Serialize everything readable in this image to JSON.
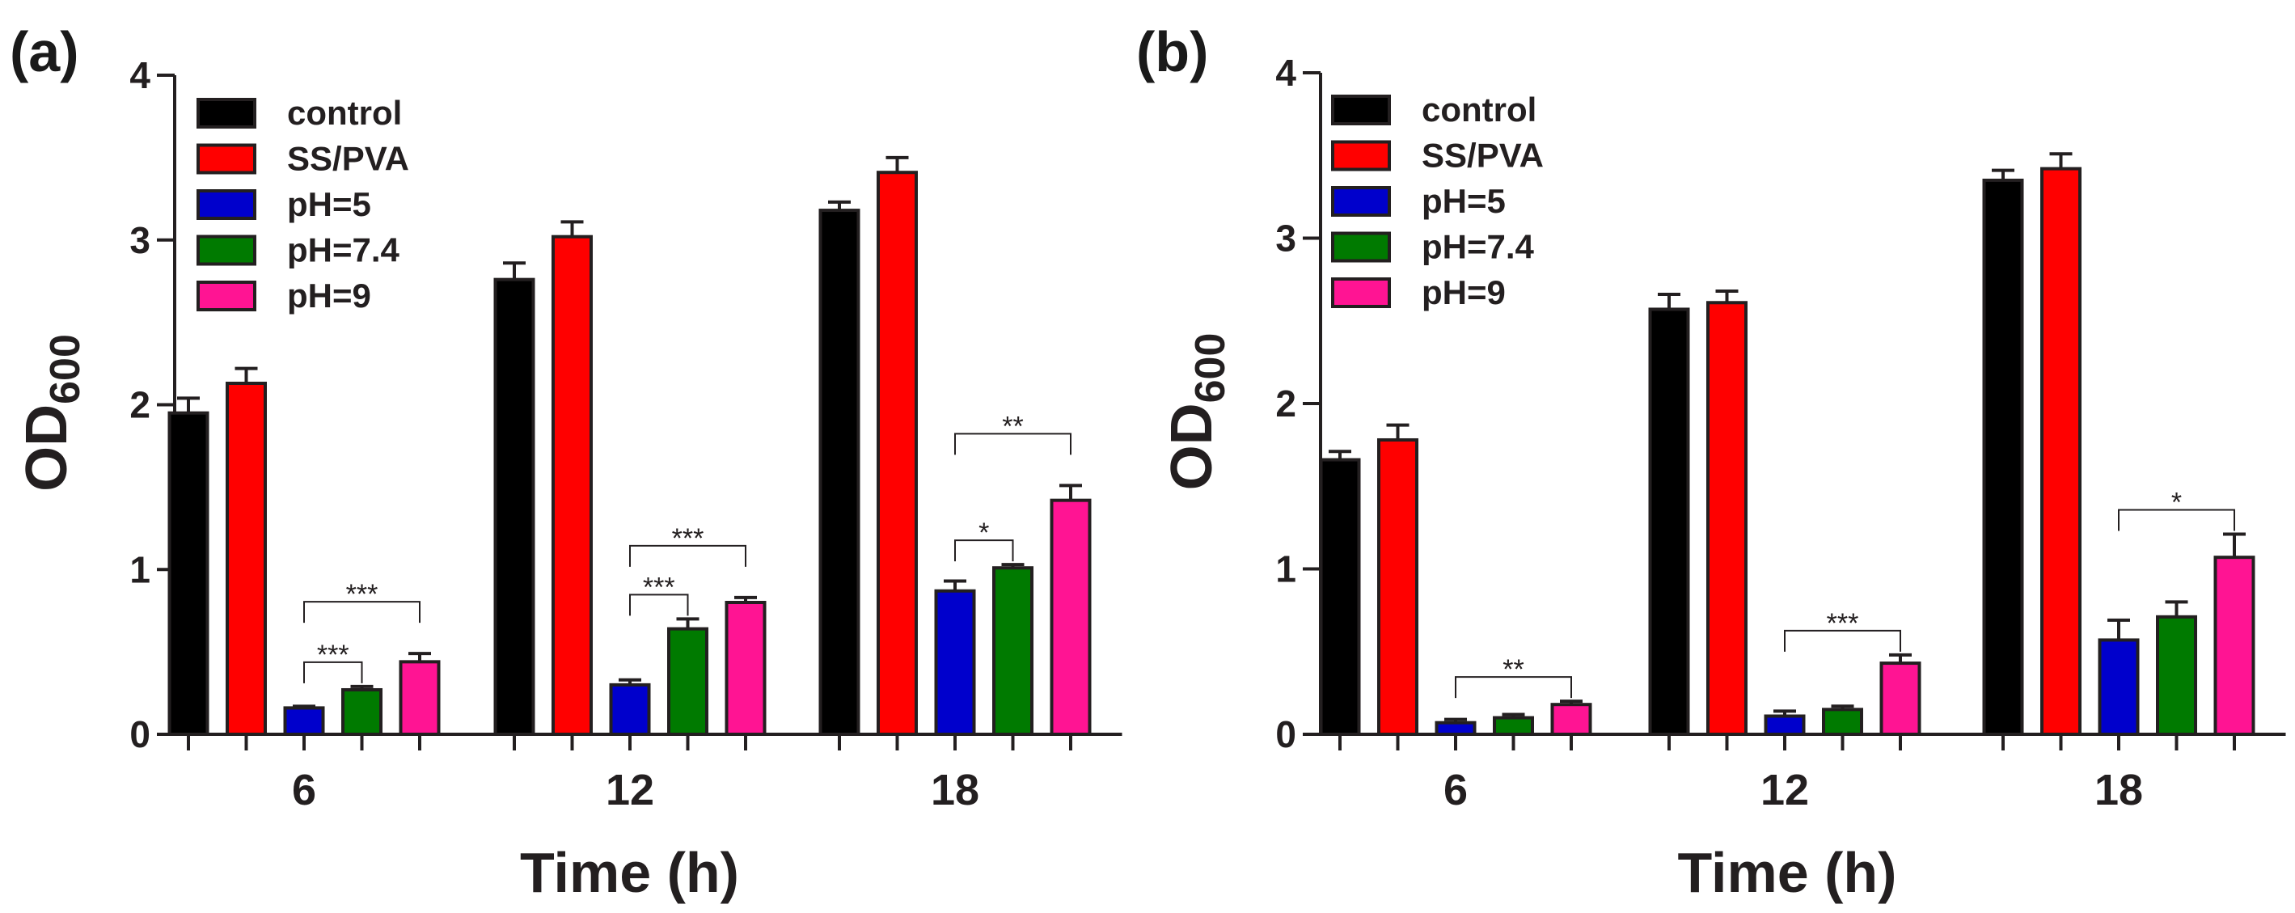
{
  "chart_data": [
    {
      "panel_label": "(a)",
      "type": "bar",
      "xlabel": "Time (h)",
      "ylabel_main": "OD",
      "ylabel_sub": "600",
      "ylim": [
        0,
        4
      ],
      "yticks": [
        "0",
        "1",
        "2",
        "3",
        "4"
      ],
      "categories": [
        "6",
        "12",
        "18"
      ],
      "series": [
        {
          "name": "control",
          "color": "#000000",
          "values": [
            1.95,
            2.76,
            3.18
          ],
          "errors": [
            0.09,
            0.1,
            0.05
          ]
        },
        {
          "name": "SS/PVA",
          "color": "#ff0000",
          "values": [
            2.13,
            3.02,
            3.41
          ],
          "errors": [
            0.09,
            0.09,
            0.09
          ]
        },
        {
          "name": "pH=5",
          "color": "#0000cc",
          "values": [
            0.16,
            0.3,
            0.87
          ],
          "errors": [
            0.01,
            0.03,
            0.06
          ]
        },
        {
          "name": "pH=7.4",
          "color": "#007a00",
          "values": [
            0.27,
            0.64,
            1.01
          ],
          "errors": [
            0.02,
            0.06,
            0.02
          ]
        },
        {
          "name": "pH=9",
          "color": "#ff1493",
          "values": [
            0.44,
            0.8,
            1.42
          ],
          "errors": [
            0.05,
            0.03,
            0.09
          ]
        }
      ],
      "significance": [
        {
          "group": 0,
          "from": 2,
          "to": 3,
          "label": "***"
        },
        {
          "group": 0,
          "from": 2,
          "to": 4,
          "label": "***"
        },
        {
          "group": 1,
          "from": 2,
          "to": 3,
          "label": "***"
        },
        {
          "group": 1,
          "from": 2,
          "to": 4,
          "label": "***"
        },
        {
          "group": 2,
          "from": 2,
          "to": 3,
          "label": "*"
        },
        {
          "group": 2,
          "from": 2,
          "to": 4,
          "label": "**"
        }
      ]
    },
    {
      "panel_label": "(b)",
      "type": "bar",
      "xlabel": "Time (h)",
      "ylabel_main": "OD",
      "ylabel_sub": "600",
      "ylim": [
        0,
        4
      ],
      "yticks": [
        "0",
        "1",
        "2",
        "3",
        "4"
      ],
      "categories": [
        "6",
        "12",
        "18"
      ],
      "series": [
        {
          "name": "control",
          "color": "#000000",
          "values": [
            1.66,
            2.57,
            3.35
          ],
          "errors": [
            0.05,
            0.09,
            0.06
          ]
        },
        {
          "name": "SS/PVA",
          "color": "#ff0000",
          "values": [
            1.78,
            2.61,
            3.42
          ],
          "errors": [
            0.09,
            0.07,
            0.09
          ]
        },
        {
          "name": "pH=5",
          "color": "#0000cc",
          "values": [
            0.07,
            0.11,
            0.57
          ],
          "errors": [
            0.02,
            0.03,
            0.12
          ]
        },
        {
          "name": "pH=7.4",
          "color": "#007a00",
          "values": [
            0.1,
            0.15,
            0.71
          ],
          "errors": [
            0.02,
            0.02,
            0.09
          ]
        },
        {
          "name": "pH=9",
          "color": "#ff1493",
          "values": [
            0.18,
            0.43,
            1.07
          ],
          "errors": [
            0.02,
            0.05,
            0.14
          ]
        }
      ],
      "significance": [
        {
          "group": 0,
          "from": 2,
          "to": 4,
          "label": "**"
        },
        {
          "group": 1,
          "from": 2,
          "to": 4,
          "label": "***"
        },
        {
          "group": 2,
          "from": 2,
          "to": 4,
          "label": "*"
        }
      ]
    }
  ]
}
